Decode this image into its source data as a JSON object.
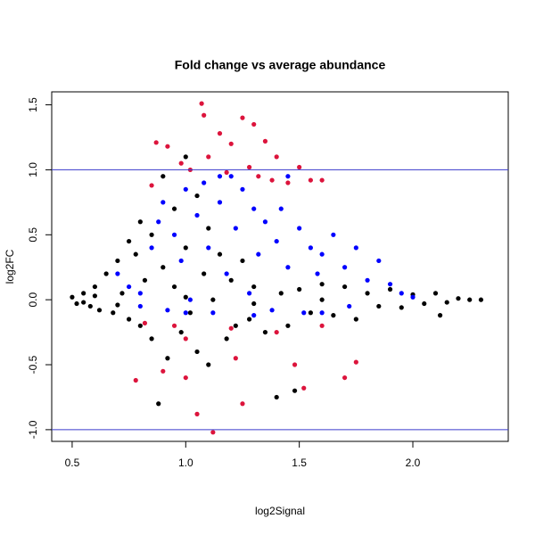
{
  "chart_data": {
    "type": "scatter",
    "title": "Fold change vs average abundance",
    "x_label": "log2Signal",
    "y_label": "log2FC",
    "xlim": [
      0.41,
      2.42
    ],
    "ylim": [
      -1.09,
      1.6
    ],
    "xticks": [
      0.5,
      {
        "value": 1,
        "label": "1.0"
      },
      1.5,
      {
        "value": 2,
        "label": "2.0"
      }
    ],
    "yticks": [
      {
        "value": -1,
        "label": "-1.0"
      },
      -0.5,
      {
        "value": 0,
        "label": "0.0"
      },
      0.5,
      {
        "value": 1,
        "label": "1.0"
      },
      1.5
    ],
    "hlines": [
      1,
      -1
    ],
    "hline_color": "#3a3acc",
    "series": [
      {
        "color": "#000000",
        "x": [
          0.5,
          0.52,
          0.55,
          0.58,
          0.6,
          0.62,
          0.65,
          0.68,
          0.7,
          0.72,
          0.75,
          0.75,
          0.78,
          0.8,
          0.8,
          0.82,
          0.85,
          0.85,
          0.88,
          0.9,
          0.9,
          0.92,
          0.95,
          0.95,
          0.98,
          1.0,
          1.0,
          1.02,
          1.05,
          1.05,
          1.08,
          1.1,
          1.1,
          1.12,
          1.15,
          1.18,
          1.2,
          1.22,
          1.25,
          1.28,
          1.3,
          1.35,
          1.4,
          1.42,
          1.45,
          1.48,
          1.5,
          1.55,
          1.6,
          1.65,
          1.7,
          1.75,
          1.8,
          1.85,
          1.9,
          1.95,
          2.0,
          2.05,
          2.1,
          2.12,
          2.15,
          2.2,
          2.25,
          2.3,
          0.55,
          0.6,
          0.7,
          1.0,
          1.3,
          1.6
        ],
        "values": [
          0.02,
          -0.03,
          0.05,
          -0.05,
          0.1,
          -0.08,
          0.2,
          -0.1,
          0.3,
          0.05,
          0.45,
          -0.15,
          0.35,
          0.6,
          -0.2,
          0.15,
          0.5,
          -0.3,
          -0.8,
          0.95,
          0.25,
          -0.45,
          0.7,
          0.1,
          -0.25,
          1.1,
          0.4,
          -0.1,
          0.8,
          -0.4,
          0.2,
          0.55,
          -0.5,
          0.0,
          0.35,
          -0.3,
          0.15,
          -0.2,
          0.3,
          -0.15,
          0.1,
          -0.25,
          -0.75,
          0.05,
          -0.2,
          -0.7,
          0.08,
          -0.1,
          0.12,
          -0.12,
          0.1,
          -0.15,
          0.05,
          -0.05,
          0.08,
          -0.06,
          0.04,
          -0.03,
          0.05,
          -0.12,
          -0.02,
          0.01,
          0.0,
          0.0,
          -0.02,
          0.03,
          -0.04,
          0.02,
          -0.03,
          0.0
        ]
      },
      {
        "color": "#0000ff",
        "x": [
          0.7,
          0.75,
          0.8,
          0.85,
          0.88,
          0.9,
          0.92,
          0.95,
          0.98,
          1.0,
          1.02,
          1.05,
          1.08,
          1.1,
          1.12,
          1.15,
          1.18,
          1.2,
          1.22,
          1.25,
          1.28,
          1.3,
          1.32,
          1.35,
          1.38,
          1.4,
          1.42,
          1.45,
          1.5,
          1.52,
          1.55,
          1.58,
          1.6,
          1.65,
          1.7,
          1.72,
          1.75,
          1.8,
          1.85,
          1.9,
          1.95,
          2.0,
          0.8,
          1.0,
          1.3,
          1.6,
          1.45,
          1.15
        ],
        "values": [
          0.2,
          0.1,
          -0.05,
          0.4,
          0.6,
          0.75,
          -0.08,
          0.5,
          0.3,
          0.85,
          0.0,
          0.65,
          0.9,
          0.4,
          -0.1,
          0.75,
          0.2,
          0.95,
          0.55,
          0.85,
          0.05,
          0.7,
          0.35,
          0.6,
          -0.08,
          0.45,
          0.7,
          0.25,
          0.55,
          -0.1,
          0.4,
          0.2,
          0.35,
          0.5,
          0.25,
          -0.05,
          0.4,
          0.15,
          0.3,
          0.12,
          0.05,
          0.02,
          0.05,
          -0.1,
          -0.12,
          -0.1,
          0.95,
          0.95
        ]
      },
      {
        "color": "#dc143c",
        "x": [
          0.78,
          0.82,
          0.85,
          0.87,
          0.9,
          0.92,
          0.95,
          0.98,
          1.0,
          1.02,
          1.05,
          1.07,
          1.08,
          1.1,
          1.12,
          1.15,
          1.18,
          1.2,
          1.22,
          1.25,
          1.25,
          1.28,
          1.3,
          1.32,
          1.35,
          1.38,
          1.4,
          1.45,
          1.48,
          1.5,
          1.52,
          1.55,
          1.6,
          1.7,
          1.75,
          1.0,
          1.2,
          1.4,
          1.6
        ],
        "values": [
          -0.62,
          -0.18,
          0.88,
          1.21,
          -0.55,
          1.18,
          -0.2,
          1.05,
          -0.6,
          1.0,
          -0.88,
          1.51,
          1.42,
          1.1,
          -1.02,
          1.28,
          0.98,
          1.2,
          -0.45,
          1.4,
          -0.8,
          1.02,
          1.35,
          0.95,
          1.22,
          0.92,
          1.1,
          0.9,
          -0.5,
          1.02,
          -0.68,
          0.92,
          0.92,
          -0.6,
          -0.48,
          -0.3,
          -0.22,
          -0.25,
          -0.2
        ]
      }
    ]
  }
}
